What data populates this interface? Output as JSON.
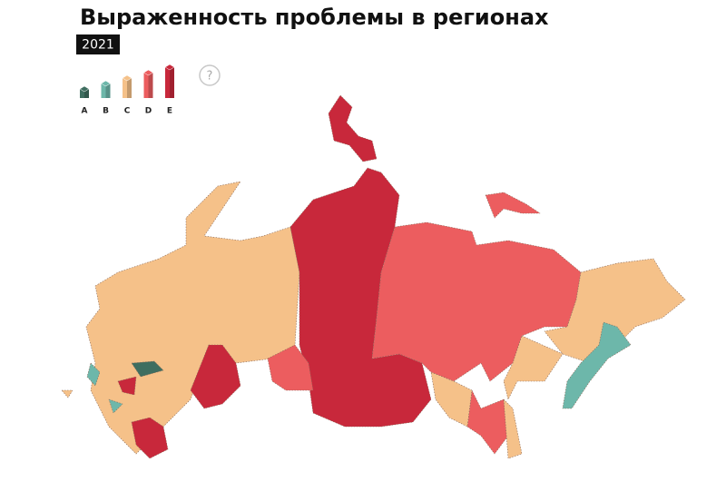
{
  "title": "Выраженность проблемы в регионах",
  "year": "2021",
  "help": "?",
  "legend": [
    {
      "label": "A",
      "color": "#3f6e60"
    },
    {
      "label": "B",
      "color": "#6db7aa"
    },
    {
      "label": "C",
      "color": "#f5c189"
    },
    {
      "label": "D",
      "color": "#ec5d5f"
    },
    {
      "label": "E",
      "color": "#c8283b"
    }
  ]
}
